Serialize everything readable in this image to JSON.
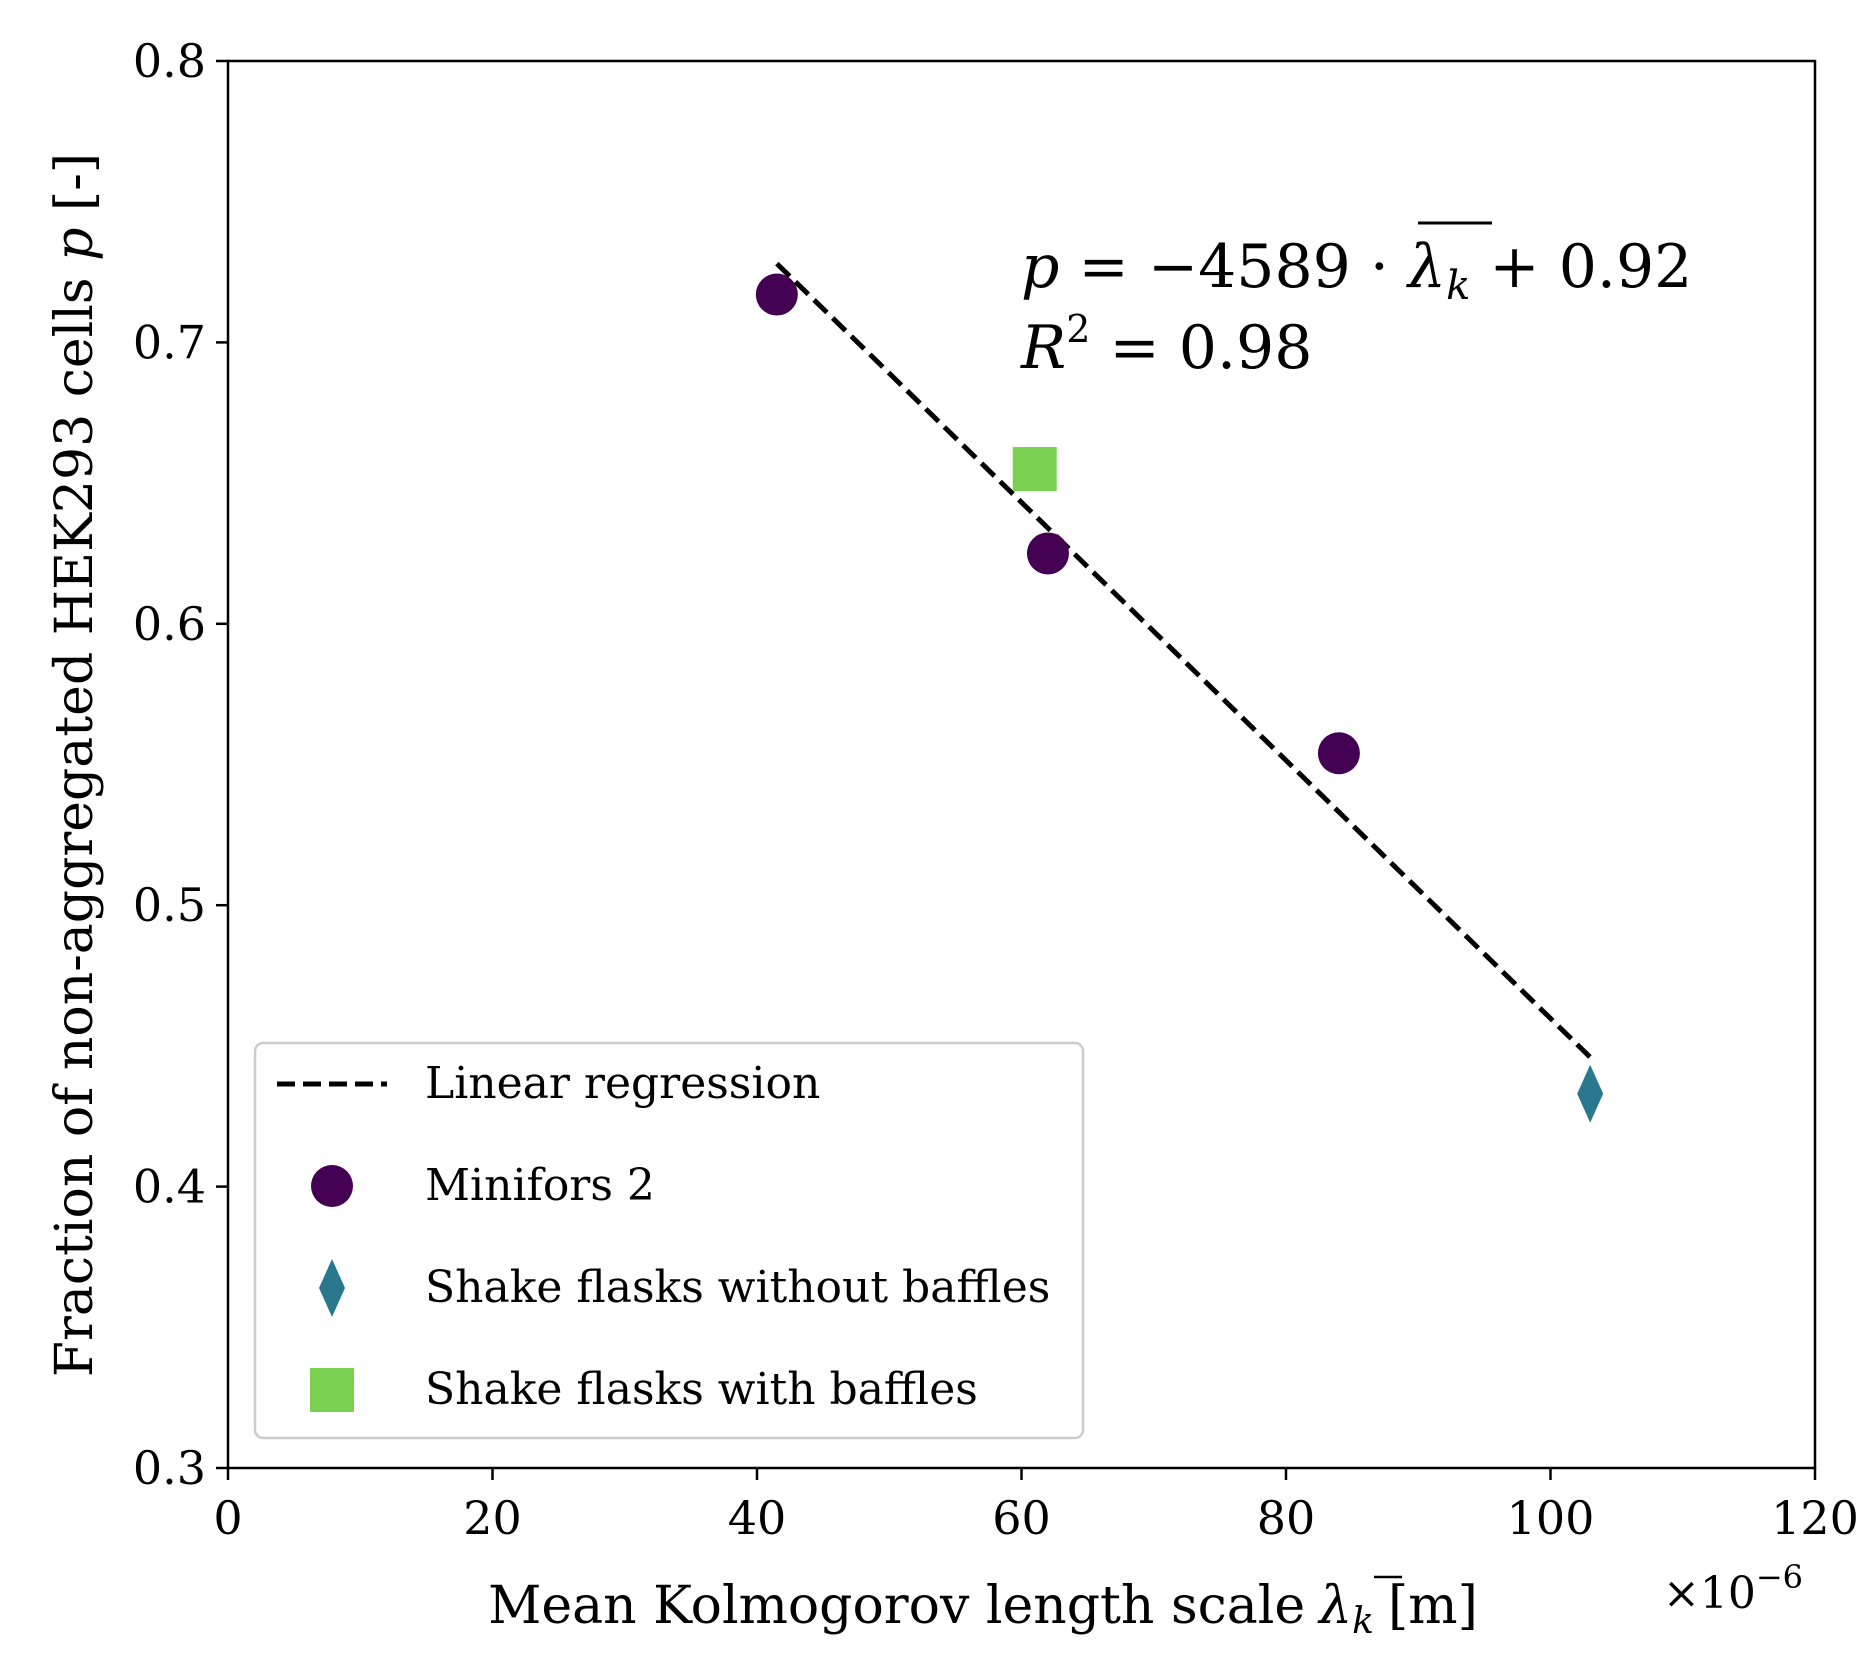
{
  "chart_data": {
    "type": "scatter",
    "xlabel": "Mean Kolmogorov length scale",
    "xlabel_symbol": "λ",
    "xlabel_subscript": "k",
    "xlabel_unit": "[m]",
    "x_multiplier_base": "×10",
    "x_multiplier_exp": "−6",
    "ylabel_text": "Fraction of non-aggregated HEK293 cells ",
    "ylabel_symbol": "p",
    "ylabel_unit": " [-]",
    "xlim": [
      0,
      120
    ],
    "ylim": [
      0.3,
      0.8
    ],
    "xticks": [
      0,
      20,
      40,
      60,
      80,
      100,
      120
    ],
    "xtick_labels": [
      "0",
      "20",
      "40",
      "60",
      "80",
      "100",
      "120"
    ],
    "yticks": [
      0.3,
      0.4,
      0.5,
      0.6,
      0.7,
      0.8
    ],
    "ytick_labels": [
      "0.3",
      "0.4",
      "0.5",
      "0.6",
      "0.7",
      "0.8"
    ],
    "grid": false,
    "legend_position": "lower-left",
    "series": [
      {
        "name": "Linear regression",
        "kind": "line",
        "style": "dashed",
        "color": "#000000",
        "x": [
          41.5,
          103
        ],
        "y": [
          0.728,
          0.446
        ]
      },
      {
        "name": "Minifors 2",
        "kind": "scatter",
        "marker": "circle",
        "color": "#440154",
        "x": [
          41.5,
          62,
          84
        ],
        "y": [
          0.717,
          0.625,
          0.554
        ]
      },
      {
        "name": "Shake flasks without baffles",
        "kind": "scatter",
        "marker": "diamond",
        "color": "#2a788e",
        "x": [
          103
        ],
        "y": [
          0.433
        ]
      },
      {
        "name": "Shake flasks with baffles",
        "kind": "scatter",
        "marker": "square",
        "color": "#7ad151",
        "x": [
          61
        ],
        "y": [
          0.655
        ]
      }
    ],
    "annotation": {
      "eq_p": "p",
      "eq_rest": " = −4589 · ",
      "eq_lambda": "λ",
      "eq_sub": "k",
      "eq_tail": " + 0.92",
      "r2_R": "R",
      "r2_exp": "2",
      "r2_rest": " = 0.98"
    }
  }
}
